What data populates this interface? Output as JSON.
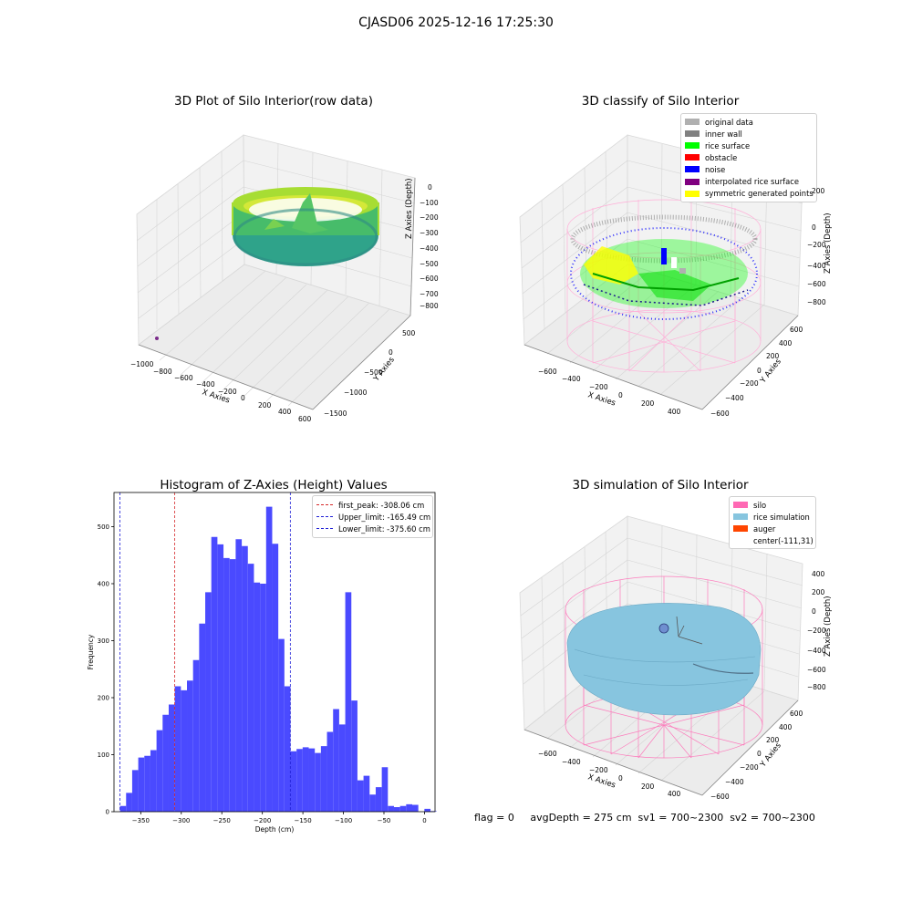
{
  "suptitle": "CJASD06 2025-12-16 17:25:30",
  "footer": "flag = 0     avgDepth = 275 cm  sv1 = 700~2300  sv2 = 700~2300",
  "colors": {
    "hist_bar": "#4a4aff",
    "first_peak": "#d62728",
    "limits": "#1f1fd6",
    "silo": "#ff69b4",
    "rice_sim": "#87c5df",
    "auger": "#ff4500"
  },
  "plot1": {
    "title": "3D Plot of Silo Interior(row data)",
    "xlabel": "X Axies",
    "ylabel": "Y Axies",
    "zlabel": "Z Axies (Depth)",
    "xticks": [
      "−1000",
      "−800",
      "−600",
      "−400",
      "−200",
      "0",
      "200",
      "400",
      "600"
    ],
    "yticks": [
      "−1500",
      "−1000",
      "−500",
      "0",
      "500"
    ],
    "zticks": [
      "0",
      "−100",
      "−200",
      "−300",
      "−400",
      "−500",
      "−600",
      "−700",
      "−800"
    ]
  },
  "plot2": {
    "title": "3D classify of Silo Interior",
    "xlabel": "X Axies",
    "ylabel": "Y Axies",
    "zlabel": "Z Axies (Depth)",
    "xticks": [
      "−600",
      "−400",
      "−200",
      "0",
      "200",
      "400"
    ],
    "yticks": [
      "−600",
      "−400",
      "−200",
      "0",
      "200",
      "400",
      "600"
    ],
    "zticks": [
      "200",
      "0",
      "−200",
      "−400",
      "−600",
      "−800"
    ],
    "legend": [
      {
        "label": "original data",
        "color": "#b0b0b0"
      },
      {
        "label": "inner wall",
        "color": "#808080"
      },
      {
        "label": "rice surface",
        "color": "#00ff00"
      },
      {
        "label": "obstacle",
        "color": "#ff0000"
      },
      {
        "label": "noise",
        "color": "#0000ff"
      },
      {
        "label": "interpolated rice surface",
        "color": "#800080"
      },
      {
        "label": "symmetric generated points",
        "color": "#ffff00"
      }
    ]
  },
  "plot4": {
    "title": "3D simulation of Silo Interior",
    "xlabel": "X Axies",
    "ylabel": "Y Axies",
    "zlabel": "Z Axies (Depth)",
    "xticks": [
      "−600",
      "−400",
      "−200",
      "0",
      "200",
      "400"
    ],
    "yticks": [
      "−600",
      "−400",
      "−200",
      "0",
      "200",
      "400",
      "600"
    ],
    "zticks": [
      "400",
      "200",
      "0",
      "−200",
      "−400",
      "−600",
      "−800"
    ],
    "legend": [
      {
        "label": "silo",
        "color": "#ff69b4"
      },
      {
        "label": "rice simulation",
        "color": "#87c5df"
      },
      {
        "label": "auger",
        "color": "#ff4500"
      },
      {
        "label": "center(-111,31)",
        "color": ""
      }
    ]
  },
  "chart_data": {
    "type": "bar",
    "title": "Histogram of Z-Axies (Height) Values",
    "xlabel": "Depth (cm)",
    "ylabel": "Frequency",
    "xlim": [
      -383,
      13
    ],
    "ylim": [
      0,
      560
    ],
    "xticks": [
      -350,
      -300,
      -250,
      -200,
      -150,
      -100,
      -50,
      0
    ],
    "yticks": [
      0,
      100,
      200,
      300,
      400,
      500
    ],
    "bin_start": -375.6,
    "bin_width": 7.51,
    "values": [
      10,
      33,
      73,
      95,
      98,
      108,
      143,
      170,
      188,
      220,
      213,
      230,
      266,
      330,
      385,
      482,
      469,
      445,
      443,
      478,
      466,
      435,
      402,
      400,
      535,
      470,
      303,
      220,
      106,
      110,
      113,
      111,
      103,
      115,
      140,
      180,
      153,
      385,
      195,
      55,
      63,
      30,
      43,
      78,
      10,
      8,
      10,
      13,
      12,
      0,
      5,
      1
    ],
    "lines": [
      {
        "label": "first_peak: -308.06 cm",
        "x": -308.06,
        "color": "#d62728"
      },
      {
        "label": "Upper_limit: -165.49 cm",
        "x": -165.49,
        "color": "#1f1fd6"
      },
      {
        "label": "Lower_limit: -375.60 cm",
        "x": -375.6,
        "color": "#1f1fd6"
      }
    ],
    "grid": false,
    "legend_position": "top-right"
  }
}
